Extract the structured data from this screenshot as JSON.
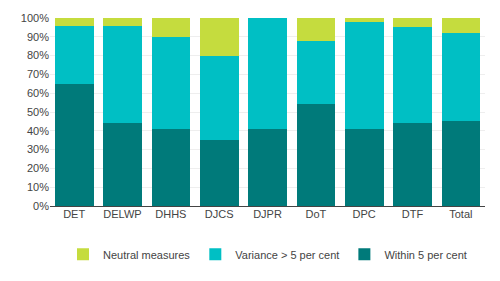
{
  "chart_data": {
    "type": "bar",
    "stacked": true,
    "categories": [
      "DET",
      "DELWP",
      "DHHS",
      "DJCS",
      "DJPR",
      "DoT",
      "DPC",
      "DTF",
      "Total"
    ],
    "series": [
      {
        "name": "Within 5 per cent",
        "color": "#007a7a",
        "values": [
          65,
          44,
          41,
          35,
          41,
          54,
          41,
          44,
          45
        ]
      },
      {
        "name": "Variance > 5 per cent",
        "color": "#00bfc4",
        "values": [
          31,
          52,
          49,
          45,
          59,
          34,
          57,
          51,
          47
        ]
      },
      {
        "name": "Neutral measures",
        "color": "#c5dc3e",
        "values": [
          4,
          4,
          10,
          20,
          0,
          12,
          2,
          5,
          8
        ]
      }
    ],
    "ylim": [
      0,
      100
    ],
    "yticks": [
      {
        "value": 0,
        "label": "0%"
      },
      {
        "value": 10,
        "label": "10%"
      },
      {
        "value": 20,
        "label": "20%"
      },
      {
        "value": 30,
        "label": "30%"
      },
      {
        "value": 40,
        "label": "40%"
      },
      {
        "value": 50,
        "label": "50%"
      },
      {
        "value": 60,
        "label": "60%"
      },
      {
        "value": 70,
        "label": "70%"
      },
      {
        "value": 80,
        "label": "80%"
      },
      {
        "value": 90,
        "label": "90%"
      },
      {
        "value": 100,
        "label": "100%"
      }
    ],
    "grid": true,
    "legend": "bottom"
  }
}
